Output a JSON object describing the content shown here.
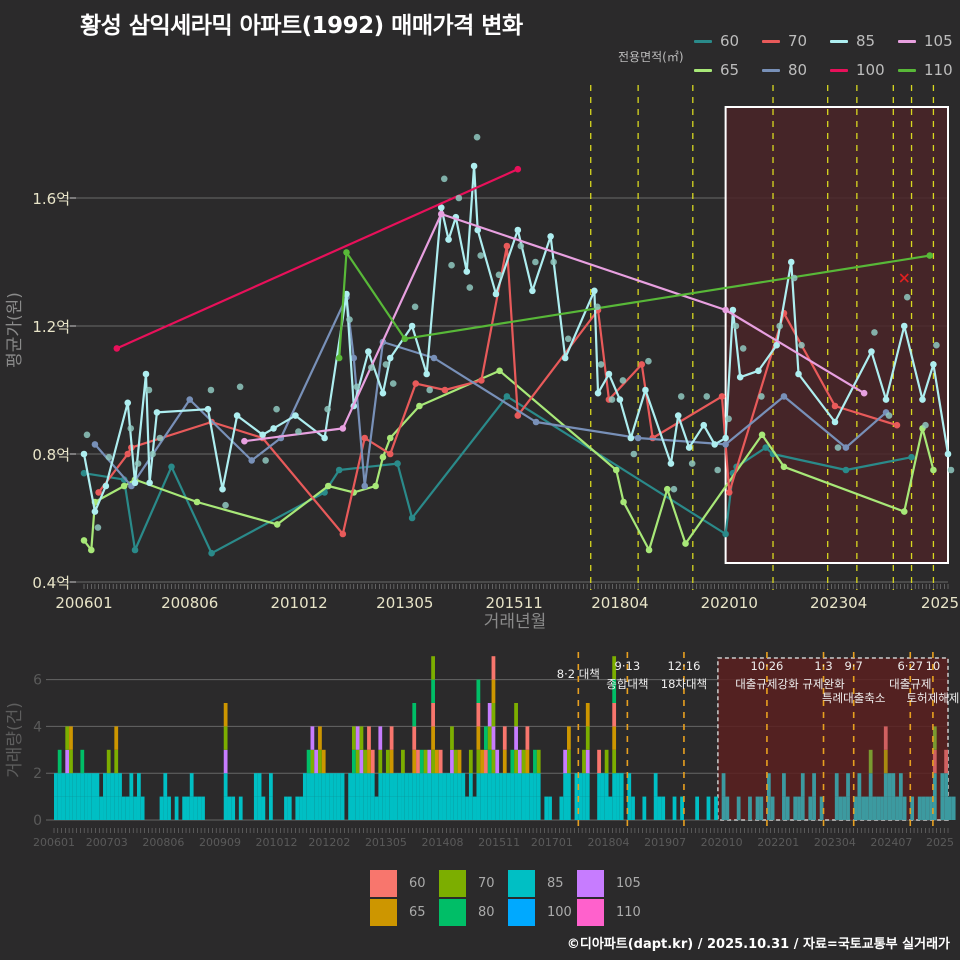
{
  "title": "황성 삼익세라믹 아파트(1992) 매매가격 변화",
  "footer": "©디아파트(dapt.kr) / 2025.10.31 / 자료=국토교통부 실거래가",
  "legend_top": {
    "title": "전용면적(㎡)",
    "items": [
      {
        "label": "60",
        "color": "#2a8a8a"
      },
      {
        "label": "70",
        "color": "#e85a5a"
      },
      {
        "label": "85",
        "color": "#aeeef0"
      },
      {
        "label": "105",
        "color": "#e8a0e0"
      },
      {
        "label": "65",
        "color": "#a8e878"
      },
      {
        "label": "80",
        "color": "#7890b8"
      },
      {
        "label": "100",
        "color": "#e8105a"
      },
      {
        "label": "110",
        "color": "#58b838"
      }
    ]
  },
  "legend_bottom": {
    "items": [
      {
        "label": "60",
        "color": "#f8766d"
      },
      {
        "label": "65",
        "color": "#cd9600"
      },
      {
        "label": "70",
        "color": "#7cae00"
      },
      {
        "label": "80",
        "color": "#00be67"
      },
      {
        "label": "85",
        "color": "#00bfc4"
      },
      {
        "label": "100",
        "color": "#00a9ff"
      },
      {
        "label": "105",
        "color": "#c77cff"
      },
      {
        "label": "110",
        "color": "#ff61cc"
      }
    ]
  },
  "chart_data": [
    {
      "type": "line",
      "title": "황성 삼익세라믹 아파트(1992) 매매가격 변화",
      "xlabel": "거래년월",
      "ylabel": "평균가(원)",
      "ylim": [
        0.4,
        1.75
      ],
      "yticks": [
        {
          "v": 0.4,
          "label": "0.4억"
        },
        {
          "v": 0.8,
          "label": "0.8억"
        },
        {
          "v": 1.2,
          "label": "1.2억"
        },
        {
          "v": 1.6,
          "label": "1.6억"
        }
      ],
      "xrange": [
        "200601",
        "202510"
      ],
      "xticks": [
        "200601",
        "200806",
        "201012",
        "201305",
        "201511",
        "201804",
        "202010",
        "202304",
        "2025"
      ],
      "grid": true,
      "legend_position": "top-right",
      "highlight_box": {
        "from": "202009",
        "to": "202510",
        "y_from": 0.45,
        "y_to": 1.88
      },
      "policy_lines": [
        "201708",
        "201809",
        "201912",
        "202110",
        "202301",
        "202309",
        "202407",
        "202412",
        "202506"
      ],
      "series": [
        {
          "name": "60",
          "points": [
            [
              "200601",
              0.74
            ],
            [
              "200612",
              0.72
            ],
            [
              "200703",
              0.5
            ],
            [
              "200801",
              0.76
            ],
            [
              "200812",
              0.49
            ],
            [
              "201107",
              0.68
            ],
            [
              "201111",
              0.75
            ],
            [
              "201303",
              0.77
            ],
            [
              "201307",
              0.6
            ],
            [
              "201509",
              0.98
            ],
            [
              "202009",
              0.55
            ],
            [
              "202011",
              0.74
            ],
            [
              "202012",
              0.76
            ],
            [
              "202108",
              0.82
            ],
            [
              "202110",
              0.8
            ],
            [
              "202306",
              0.75
            ],
            [
              "202412",
              0.79
            ]
          ]
        },
        {
          "name": "65",
          "points": [
            [
              "200601",
              0.53
            ],
            [
              "200603",
              0.5
            ],
            [
              "200604",
              0.65
            ],
            [
              "200612",
              0.7
            ],
            [
              "200703",
              0.72
            ],
            [
              "200808",
              0.65
            ],
            [
              "201006",
              0.58
            ],
            [
              "201108",
              0.7
            ],
            [
              "201203",
              0.68
            ],
            [
              "201209",
              0.7
            ],
            [
              "201211",
              0.79
            ],
            [
              "201301",
              0.85
            ],
            [
              "201309",
              0.95
            ],
            [
              "201507",
              1.06
            ],
            [
              "201803",
              0.75
            ],
            [
              "201805",
              0.65
            ],
            [
              "201812",
              0.5
            ],
            [
              "201905",
              0.69
            ],
            [
              "201910",
              0.52
            ],
            [
              "202107",
              0.86
            ],
            [
              "202201",
              0.76
            ],
            [
              "202410",
              0.62
            ],
            [
              "202503",
              0.88
            ],
            [
              "202506",
              0.75
            ]
          ]
        },
        {
          "name": "70",
          "points": [
            [
              "200605",
              0.68
            ],
            [
              "200701",
              0.8
            ],
            [
              "200702",
              0.82
            ],
            [
              "200812",
              0.9
            ],
            [
              "201002",
              0.85
            ],
            [
              "201112",
              0.55
            ],
            [
              "201206",
              0.85
            ],
            [
              "201301",
              0.8
            ],
            [
              "201308",
              1.02
            ],
            [
              "201404",
              1.0
            ],
            [
              "201502",
              1.03
            ],
            [
              "201509",
              1.45
            ],
            [
              "201512",
              0.92
            ],
            [
              "201710",
              1.25
            ],
            [
              "201801",
              0.97
            ],
            [
              "201810",
              1.08
            ],
            [
              "201901",
              0.85
            ],
            [
              "202008",
              0.98
            ],
            [
              "202010",
              0.68
            ],
            [
              "202201",
              1.24
            ],
            [
              "202303",
              0.95
            ],
            [
              "202408",
              0.89
            ]
          ]
        },
        {
          "name": "80",
          "points": [
            [
              "200604",
              0.83
            ],
            [
              "200702",
              0.7
            ],
            [
              "200806",
              0.97
            ],
            [
              "200911",
              0.78
            ],
            [
              "201007",
              0.85
            ],
            [
              "201201",
              1.29
            ],
            [
              "201203",
              1.1
            ],
            [
              "201206",
              0.7
            ],
            [
              "201211",
              1.15
            ],
            [
              "201401",
              1.1
            ],
            [
              "201605",
              0.9
            ],
            [
              "201809",
              0.85
            ],
            [
              "202009",
              0.83
            ],
            [
              "202201",
              0.98
            ],
            [
              "202306",
              0.82
            ],
            [
              "202405",
              0.93
            ]
          ]
        },
        {
          "name": "85",
          "points": [
            [
              "200601",
              0.8
            ],
            [
              "200604",
              0.62
            ],
            [
              "200607",
              0.7
            ],
            [
              "200701",
              0.96
            ],
            [
              "200703",
              0.71
            ],
            [
              "200706",
              1.05
            ],
            [
              "200707",
              0.71
            ],
            [
              "200709",
              0.93
            ],
            [
              "200811",
              0.94
            ],
            [
              "200903",
              0.69
            ],
            [
              "200907",
              0.92
            ],
            [
              "201002",
              0.86
            ],
            [
              "201005",
              0.88
            ],
            [
              "201011",
              0.92
            ],
            [
              "201107",
              0.85
            ],
            [
              "201201",
              1.3
            ],
            [
              "201203",
              0.95
            ],
            [
              "201207",
              1.12
            ],
            [
              "201211",
              0.99
            ],
            [
              "201301",
              1.1
            ],
            [
              "201307",
              1.2
            ],
            [
              "201311",
              1.05
            ],
            [
              "201403",
              1.57
            ],
            [
              "201405",
              1.47
            ],
            [
              "201407",
              1.54
            ],
            [
              "201410",
              1.37
            ],
            [
              "201412",
              1.7
            ],
            [
              "201501",
              1.5
            ],
            [
              "201506",
              1.3
            ],
            [
              "201512",
              1.5
            ],
            [
              "201604",
              1.31
            ],
            [
              "201609",
              1.48
            ],
            [
              "201701",
              1.1
            ],
            [
              "201709",
              1.31
            ],
            [
              "201710",
              0.99
            ],
            [
              "201801",
              1.05
            ],
            [
              "201804",
              0.97
            ],
            [
              "201807",
              0.85
            ],
            [
              "201811",
              1.0
            ],
            [
              "201906",
              0.77
            ],
            [
              "201908",
              0.92
            ],
            [
              "201911",
              0.82
            ],
            [
              "202003",
              0.89
            ],
            [
              "202006",
              0.83
            ],
            [
              "202009",
              0.85
            ],
            [
              "202011",
              1.25
            ],
            [
              "202101",
              1.04
            ],
            [
              "202106",
              1.06
            ],
            [
              "202111",
              1.14
            ],
            [
              "202203",
              1.4
            ],
            [
              "202205",
              1.05
            ],
            [
              "202303",
              0.9
            ],
            [
              "202401",
              1.12
            ],
            [
              "202405",
              0.97
            ],
            [
              "202410",
              1.2
            ],
            [
              "202503",
              0.97
            ],
            [
              "202506",
              1.08
            ],
            [
              "202510",
              0.8
            ]
          ]
        },
        {
          "name": "100",
          "points": [
            [
              "200610",
              1.13
            ],
            [
              "201512",
              1.69
            ]
          ]
        },
        {
          "name": "105",
          "points": [
            [
              "200909",
              0.84
            ],
            [
              "201112",
              0.88
            ],
            [
              "201403",
              1.55
            ],
            [
              "202009",
              1.25
            ],
            [
              "202311",
              0.99
            ]
          ]
        },
        {
          "name": "110",
          "points": [
            [
              "201111",
              1.1
            ],
            [
              "201201",
              1.43
            ],
            [
              "201305",
              1.16
            ],
            [
              "202505",
              1.42
            ]
          ]
        }
      ],
      "markers": [
        {
          "label": "x",
          "at": [
            "202410",
            1.35
          ],
          "color": "#e02020"
        }
      ]
    },
    {
      "type": "bar",
      "title": "거래량",
      "xlabel": "",
      "ylabel": "거래량(건)",
      "ylim": [
        0,
        7
      ],
      "yticks": [
        0,
        2,
        4,
        6
      ],
      "xticks": [
        "200601",
        "200703",
        "200806",
        "200909",
        "201012",
        "201202",
        "201305",
        "201408",
        "201511",
        "201701",
        "201804",
        "201907",
        "202010",
        "202201",
        "202304",
        "202407",
        "2025"
      ],
      "stacked": true,
      "highlight_box": {
        "from": "202009",
        "to": "202510"
      },
      "annotations": [
        {
          "x": "201708",
          "line1": "8·2 대책",
          "line2": ""
        },
        {
          "x": "201809",
          "line1": "9·13",
          "line2": "종합대책"
        },
        {
          "x": "201912",
          "line1": "12·16",
          "line2": "18차대책"
        },
        {
          "x": "202110",
          "line1": "10·26",
          "line2": "대출규제강화"
        },
        {
          "x": "202301",
          "line1": "1·3",
          "line2": "규제완화"
        },
        {
          "x": "202309",
          "line1": "9·7",
          "line2": "특례대출축소"
        },
        {
          "x": "202412",
          "line1": "6·27",
          "line2": "대출규제"
        },
        {
          "x": "202506",
          "line1": "10",
          "line2": "토허제해제"
        }
      ],
      "monthly_counts_total": [
        2,
        3,
        2,
        4,
        4,
        2,
        2,
        3,
        2,
        2,
        2,
        2,
        1,
        2,
        3,
        2,
        4,
        2,
        1,
        1,
        2,
        1,
        2,
        1,
        0,
        0,
        0,
        0,
        1,
        2,
        1,
        0,
        1,
        0,
        1,
        1,
        2,
        1,
        1,
        1,
        0,
        0,
        0,
        0,
        0,
        5,
        1,
        1,
        0,
        1,
        0,
        0,
        0,
        2,
        2,
        1,
        0,
        2,
        0,
        0,
        0,
        1,
        1,
        0,
        1,
        1,
        2,
        3,
        4,
        3,
        4,
        3,
        2,
        2,
        2,
        2,
        2,
        0,
        2,
        4,
        4,
        4,
        3,
        4,
        3,
        1,
        4,
        2,
        3,
        4,
        2,
        2,
        3,
        2,
        2,
        5,
        3,
        3,
        3,
        3,
        7,
        3,
        3,
        2,
        2,
        4,
        3,
        3,
        2,
        1,
        3,
        1,
        6,
        3,
        4,
        5,
        7,
        3,
        2,
        4,
        2,
        3,
        5,
        3,
        3,
        4,
        2,
        3,
        3,
        0,
        1,
        1,
        0,
        0,
        1,
        3,
        4,
        0,
        2,
        2,
        3,
        5,
        0,
        0,
        3,
        2,
        3,
        1,
        7,
        2,
        2,
        0,
        2,
        1,
        0,
        0,
        1,
        0,
        0,
        2,
        1,
        1,
        0,
        0,
        1,
        0,
        1,
        0,
        0,
        0,
        1,
        0,
        0,
        1,
        0,
        1,
        0,
        2,
        1,
        0,
        0,
        1,
        0,
        0,
        1,
        0,
        1,
        1,
        0,
        2,
        1,
        0,
        0,
        2,
        1,
        0,
        1,
        1,
        2,
        0,
        1,
        2,
        0,
        1,
        0,
        0,
        0,
        2,
        1,
        1,
        2,
        0,
        1,
        2,
        1,
        1,
        3,
        1,
        1,
        1,
        4,
        2,
        2,
        1,
        2,
        1,
        0,
        1,
        0,
        1,
        1,
        1,
        1,
        4,
        0,
        2,
        3,
        1,
        1,
        0,
        0,
        1,
        1,
        0,
        1,
        2,
        1,
        2,
        1,
        1,
        0,
        1,
        1,
        1,
        1,
        1,
        4,
        2,
        2,
        1,
        1,
        0,
        2,
        1,
        3,
        1,
        1,
        0,
        1,
        2,
        1,
        4,
        1,
        2,
        1,
        1,
        0,
        1,
        1,
        1,
        1,
        3,
        1,
        2,
        1,
        2,
        1,
        1,
        1,
        1
      ]
    }
  ],
  "axes_labels": {
    "main_x": "거래년월",
    "main_y": "평균가(원)",
    "bar_y": "거래량(건)"
  }
}
